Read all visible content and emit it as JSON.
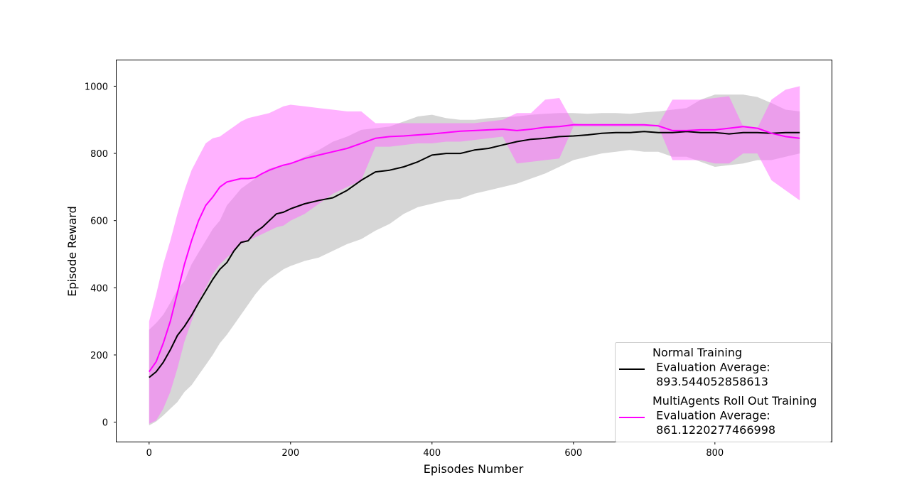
{
  "chart_data": {
    "type": "line",
    "title": "",
    "xlabel": "Episodes Number",
    "ylabel": "Episode Reward",
    "xlim": [
      -46,
      965
    ],
    "ylim": [
      -58,
      1077
    ],
    "xticks": [
      0,
      200,
      400,
      600,
      800
    ],
    "yticks": [
      0,
      200,
      400,
      600,
      800,
      1000
    ],
    "grid": false,
    "legend_position": "lower right",
    "series": [
      {
        "name": "Normal Training\n Evaluation Average:\n 893.544052858613",
        "legend_lines": [
          "Normal Training",
          " Evaluation Average:",
          " 893.544052858613"
        ],
        "color": "#000000",
        "band_color": "#c8c8c8",
        "band_opacity": 0.75,
        "x": [
          0,
          10,
          20,
          30,
          40,
          50,
          60,
          70,
          80,
          90,
          100,
          110,
          120,
          130,
          140,
          150,
          160,
          170,
          180,
          190,
          200,
          220,
          240,
          260,
          280,
          300,
          320,
          340,
          360,
          380,
          400,
          420,
          440,
          460,
          480,
          500,
          520,
          540,
          560,
          580,
          600,
          620,
          640,
          660,
          680,
          700,
          720,
          740,
          760,
          780,
          800,
          820,
          840,
          860,
          880,
          900,
          920
        ],
        "y": [
          133,
          150,
          178,
          215,
          258,
          285,
          318,
          355,
          390,
          425,
          455,
          475,
          510,
          535,
          540,
          565,
          580,
          600,
          620,
          625,
          635,
          650,
          660,
          668,
          690,
          720,
          745,
          750,
          760,
          775,
          795,
          800,
          800,
          810,
          815,
          825,
          835,
          842,
          845,
          850,
          852,
          855,
          860,
          862,
          862,
          865,
          862,
          862,
          865,
          862,
          862,
          858,
          862,
          862,
          860,
          862,
          862
        ],
        "upper": [
          275,
          295,
          320,
          355,
          395,
          420,
          470,
          505,
          540,
          575,
          600,
          645,
          670,
          695,
          710,
          725,
          740,
          755,
          760,
          765,
          770,
          790,
          810,
          835,
          850,
          870,
          875,
          880,
          895,
          910,
          915,
          905,
          900,
          900,
          905,
          908,
          910,
          915,
          918,
          920,
          920,
          918,
          920,
          920,
          918,
          922,
          925,
          930,
          935,
          960,
          975,
          975,
          975,
          968,
          950,
          930,
          925
        ],
        "lower": [
          -10,
          2,
          20,
          40,
          60,
          90,
          110,
          140,
          170,
          200,
          235,
          260,
          290,
          320,
          350,
          380,
          405,
          425,
          440,
          455,
          465,
          480,
          490,
          510,
          530,
          545,
          570,
          590,
          620,
          640,
          650,
          660,
          665,
          680,
          690,
          700,
          710,
          725,
          740,
          760,
          780,
          790,
          800,
          805,
          810,
          805,
          805,
          790,
          790,
          775,
          760,
          765,
          770,
          780,
          780,
          790,
          800
        ]
      },
      {
        "name": "MultiAgents Roll Out Training\n Evaluation Average:\n 861.1220277466998",
        "legend_lines": [
          "MultiAgents Roll Out Training",
          " Evaluation Average:",
          " 861.1220277466998"
        ],
        "color": "#ff00ff",
        "band_color": "#ff66ff",
        "band_opacity": 0.5,
        "x": [
          0,
          10,
          20,
          30,
          40,
          50,
          60,
          70,
          80,
          90,
          100,
          110,
          120,
          130,
          140,
          150,
          160,
          170,
          180,
          190,
          200,
          220,
          240,
          260,
          280,
          300,
          320,
          340,
          360,
          380,
          400,
          420,
          440,
          460,
          480,
          500,
          520,
          540,
          560,
          580,
          600,
          620,
          640,
          660,
          680,
          700,
          720,
          740,
          760,
          780,
          800,
          820,
          840,
          860,
          880,
          900,
          920
        ],
        "y": [
          150,
          180,
          235,
          300,
          385,
          470,
          540,
          600,
          645,
          670,
          700,
          715,
          720,
          725,
          725,
          728,
          740,
          750,
          758,
          765,
          770,
          785,
          795,
          805,
          815,
          830,
          845,
          850,
          852,
          855,
          858,
          862,
          866,
          868,
          870,
          872,
          868,
          872,
          878,
          880,
          885,
          885,
          885,
          885,
          885,
          885,
          882,
          868,
          868,
          870,
          870,
          875,
          880,
          875,
          860,
          850,
          845
        ],
        "upper": [
          300,
          380,
          470,
          540,
          620,
          690,
          750,
          790,
          830,
          845,
          850,
          865,
          880,
          895,
          905,
          910,
          915,
          920,
          930,
          940,
          945,
          940,
          935,
          930,
          925,
          925,
          890,
          890,
          890,
          890,
          890,
          890,
          890,
          890,
          895,
          900,
          920,
          920,
          960,
          965,
          890,
          885,
          885,
          885,
          885,
          885,
          885,
          960,
          960,
          960,
          965,
          970,
          880,
          875,
          960,
          990,
          1000
        ],
        "lower": [
          -5,
          5,
          40,
          90,
          160,
          240,
          300,
          360,
          400,
          440,
          470,
          490,
          510,
          530,
          540,
          550,
          560,
          570,
          580,
          585,
          600,
          620,
          650,
          680,
          700,
          720,
          820,
          820,
          825,
          830,
          830,
          835,
          835,
          840,
          845,
          850,
          770,
          775,
          780,
          785,
          880,
          880,
          880,
          880,
          880,
          880,
          880,
          780,
          780,
          780,
          770,
          770,
          800,
          800,
          720,
          690,
          660
        ]
      }
    ]
  }
}
